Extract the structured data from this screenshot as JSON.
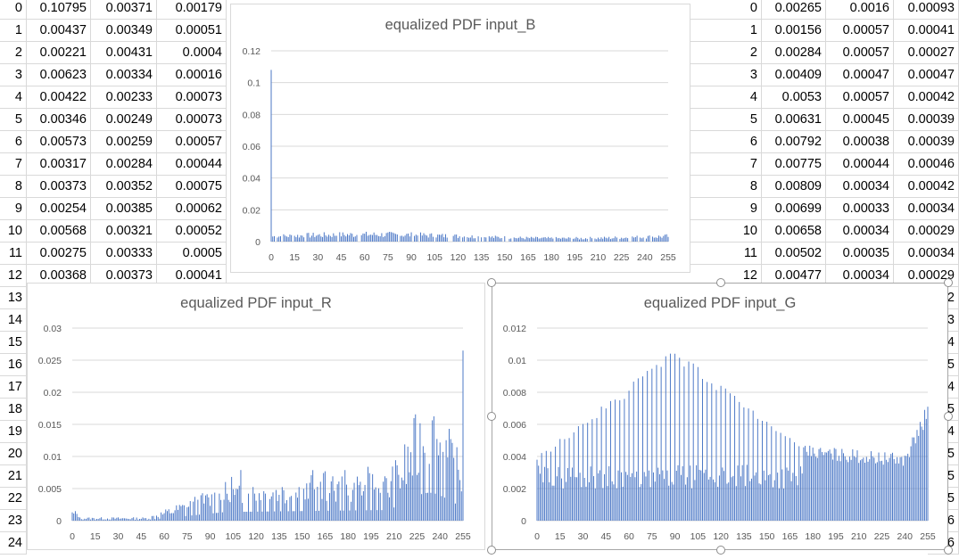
{
  "left_table": {
    "rows": [
      [
        "0",
        "0.10795",
        "0.00371",
        "0.00179"
      ],
      [
        "1",
        "0.00437",
        "0.00349",
        "0.00051"
      ],
      [
        "2",
        "0.00221",
        "0.00431",
        "0.0004"
      ],
      [
        "3",
        "0.00623",
        "0.00334",
        "0.00016"
      ],
      [
        "4",
        "0.00422",
        "0.00233",
        "0.00073"
      ],
      [
        "5",
        "0.00346",
        "0.00249",
        "0.00073"
      ],
      [
        "6",
        "0.00573",
        "0.00259",
        "0.00057"
      ],
      [
        "7",
        "0.00317",
        "0.00284",
        "0.00044"
      ],
      [
        "8",
        "0.00373",
        "0.00352",
        "0.00075"
      ],
      [
        "9",
        "0.00254",
        "0.00385",
        "0.00062"
      ],
      [
        "10",
        "0.00568",
        "0.00321",
        "0.00052"
      ],
      [
        "11",
        "0.00275",
        "0.00333",
        "0.0005"
      ],
      [
        "12",
        "0.00368",
        "0.00373",
        "0.00041"
      ]
    ],
    "row_numbers_below": [
      "13",
      "14",
      "15",
      "16",
      "17",
      "18",
      "19",
      "20",
      "21",
      "22",
      "23",
      "24"
    ]
  },
  "right_table": {
    "rows": [
      [
        "0",
        "0.00265",
        "0.0016",
        "0.00093"
      ],
      [
        "1",
        "0.00156",
        "0.00057",
        "0.00041"
      ],
      [
        "2",
        "0.00284",
        "0.00057",
        "0.00027"
      ],
      [
        "3",
        "0.00409",
        "0.00047",
        "0.00047"
      ],
      [
        "4",
        "0.0053",
        "0.00057",
        "0.00042"
      ],
      [
        "5",
        "0.00631",
        "0.00045",
        "0.00039"
      ],
      [
        "6",
        "0.00792",
        "0.00038",
        "0.00039"
      ],
      [
        "7",
        "0.00775",
        "0.00044",
        "0.00046"
      ],
      [
        "8",
        "0.00809",
        "0.00034",
        "0.00042"
      ],
      [
        "9",
        "0.00699",
        "0.00033",
        "0.00034"
      ],
      [
        "10",
        "0.00658",
        "0.00034",
        "0.00029"
      ],
      [
        "11",
        "0.00502",
        "0.00035",
        "0.00034"
      ],
      [
        "12",
        "0.00477",
        "0.00034",
        "0.00029"
      ]
    ],
    "edge_digits": [
      "2",
      "3",
      "4",
      "5",
      "4",
      "5",
      "4",
      "5",
      "5",
      "5",
      "6",
      "6"
    ]
  },
  "chart_data": [
    {
      "type": "bar",
      "title": "equalized PDF input_B",
      "x_range": [
        0,
        255
      ],
      "x_ticks": [
        "0",
        "15",
        "30",
        "45",
        "60",
        "75",
        "90",
        "105",
        "120",
        "135",
        "150",
        "165",
        "180",
        "195",
        "210",
        "225",
        "240",
        "255"
      ],
      "y_ticks": [
        "0",
        "0.02",
        "0.04",
        "0.06",
        "0.08",
        "0.1",
        "0.12"
      ],
      "ylim": [
        0,
        0.12
      ],
      "spike_at_0": 0.108,
      "baseline_level": 0.0035,
      "grid": true
    },
    {
      "type": "bar",
      "title": "equalized PDF input_R",
      "x_range": [
        0,
        255
      ],
      "x_ticks": [
        "0",
        "15",
        "30",
        "45",
        "60",
        "75",
        "90",
        "105",
        "120",
        "135",
        "150",
        "165",
        "180",
        "195",
        "210",
        "225",
        "240",
        "255"
      ],
      "y_ticks": [
        "0",
        "0.005",
        "0.01",
        "0.015",
        "0.02",
        "0.025",
        "0.03"
      ],
      "ylim": [
        0,
        0.03
      ],
      "peak_near_230": 0.0145,
      "final_bar_255": 0.0265,
      "grid": true
    },
    {
      "type": "bar",
      "title": "equalized PDF input_G",
      "x_range": [
        0,
        255
      ],
      "x_ticks": [
        "0",
        "15",
        "30",
        "45",
        "60",
        "75",
        "90",
        "105",
        "120",
        "135",
        "150",
        "165",
        "180",
        "195",
        "210",
        "225",
        "240",
        "255"
      ],
      "y_ticks": [
        "0",
        "0.002",
        "0.004",
        "0.006",
        "0.008",
        "0.01",
        "0.012"
      ],
      "ylim": [
        0,
        0.012
      ],
      "peak_near_90": 0.0107,
      "final_bar_255": 0.0071,
      "grid": true
    }
  ],
  "colors": {
    "bar": "#4472c4",
    "grid": "#d9d9d9",
    "axis_text": "#595959",
    "cell_border": "#d9d9d9"
  }
}
